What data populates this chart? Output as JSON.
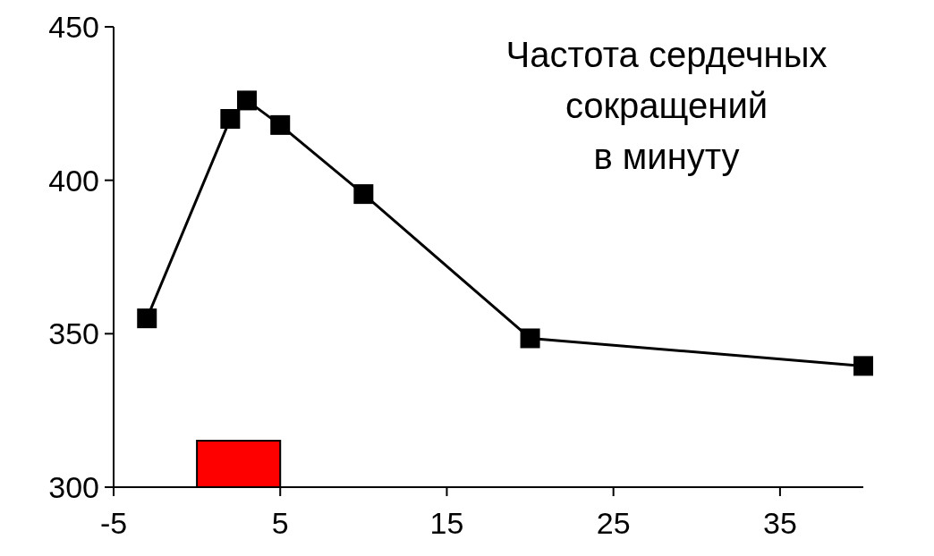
{
  "chart_data": {
    "type": "line",
    "title": "Частота сердечных\nсокращений\nв минуту",
    "x": [
      -3,
      2,
      3,
      5,
      10,
      20,
      40
    ],
    "series": [
      {
        "color": "#000000",
        "values": [
          355,
          420,
          426,
          418,
          395.5,
          348.5,
          339.5
        ]
      }
    ],
    "xlim": [
      -5,
      40
    ],
    "xticks": [
      -5,
      5,
      15,
      25,
      35
    ],
    "ylim": [
      300,
      450
    ],
    "yticks": [
      300,
      350,
      400,
      450
    ],
    "marker": "square",
    "line_style": "solid",
    "grid": false,
    "bands": [
      {
        "axis": "x",
        "from": 0,
        "to": 5,
        "color": "#ff0000"
      }
    ]
  }
}
